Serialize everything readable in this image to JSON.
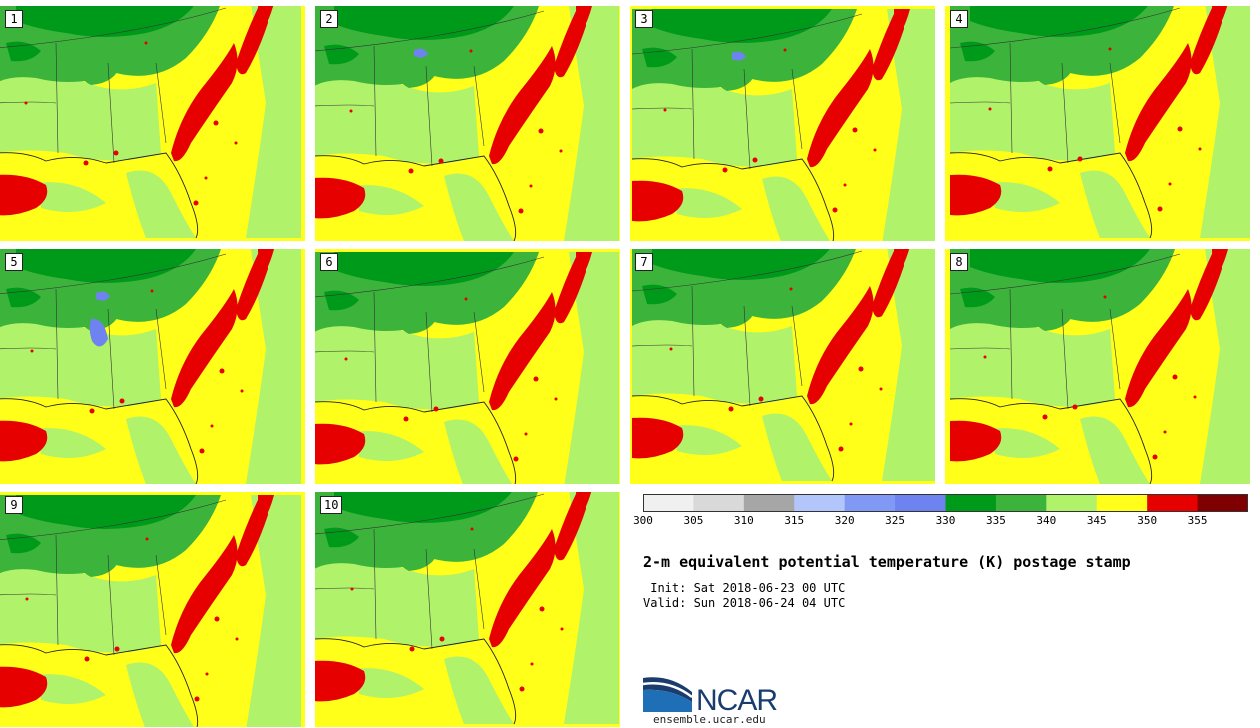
{
  "title": "2-m equivalent potential temperature (K) postage stamp",
  "init": " Init: Sat 2018-06-23 00 UTC",
  "valid": "Valid: Sun 2018-06-24 04 UTC",
  "logo_text": "NCAR",
  "site": "ensemble.ucar.edu",
  "members": [
    "1",
    "2",
    "3",
    "4",
    "5",
    "6",
    "7",
    "8",
    "9",
    "10"
  ],
  "colorbar": {
    "ticks": [
      "300",
      "305",
      "310",
      "315",
      "320",
      "325",
      "330",
      "335",
      "340",
      "345",
      "350",
      "355"
    ],
    "colors": [
      "#f0f0f0",
      "#d9d9d9",
      "#a6a6a6",
      "#b3c6fb",
      "#8099f5",
      "#6e82f0",
      "#009a1a",
      "#3cb43c",
      "#b0f26a",
      "#ffff1a",
      "#e60000",
      "#7f0000"
    ]
  },
  "colors": {
    "land_dark_green": "#009a1a",
    "land_green": "#3cb43c",
    "light_green": "#b0f26a",
    "yellow": "#ffff1a",
    "red": "#e60000",
    "blue": "#6e82f0",
    "logo_blue": "#1f6fb6",
    "logo_navy": "#1b3d6e"
  }
}
